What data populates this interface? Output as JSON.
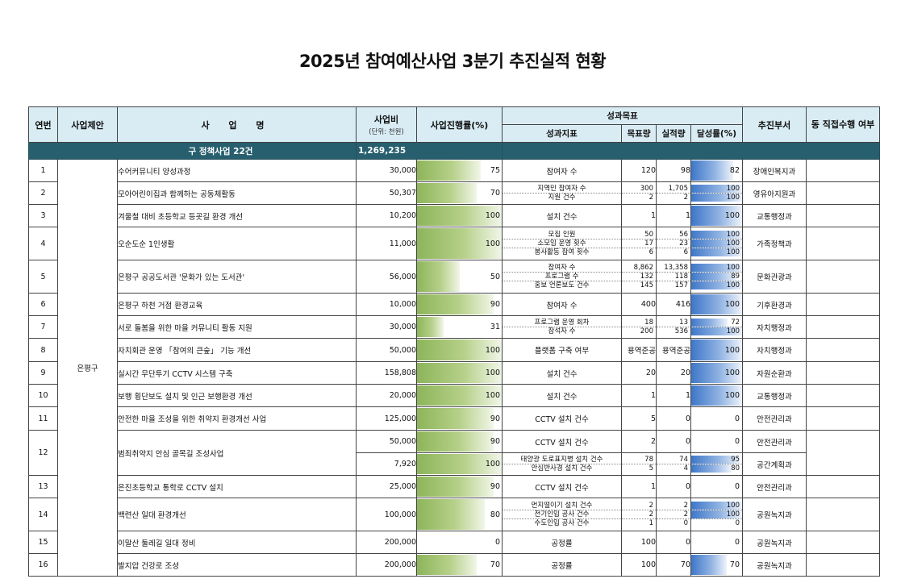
{
  "title": "2025년 참여예산사업 3분기 추진실적 현황",
  "headers": {
    "no": "연번",
    "proposer": "사업제안",
    "name": "사 업 명",
    "budget": "사업비",
    "budget_unit": "(단위: 천원)",
    "progress": "사업진행률(%)",
    "goal": "성과목표",
    "indicator": "성과지표",
    "target": "목표량",
    "actual": "실적량",
    "achieve": "달성률(%)",
    "dept": "추진부서",
    "direct": "동 직접수행 여부"
  },
  "summary": {
    "label": "구 정책사업 22건",
    "amount": "1,269,235"
  },
  "proposer_name": "은평구",
  "colors": {
    "header_bg": "#d9ecf4",
    "summary_bg": "#275f6e",
    "progress_bar": "#8db55a",
    "achieve_bar": "#3e77c8"
  },
  "rows": [
    {
      "no": "1",
      "name": "수어커뮤니티 양성과정",
      "budget": "30,000",
      "progress": 75,
      "indicators": [
        {
          "label": "참여자 수",
          "target": "120",
          "actual": "98",
          "rate": 82
        }
      ],
      "dept": "장애인복지과"
    },
    {
      "no": "2",
      "name": "모아어린이집과 함께하는 공동체활동",
      "budget": "50,307",
      "progress": 70,
      "indicators": [
        {
          "label": "지역민 참여자 수",
          "target": "300",
          "actual": "1,705",
          "rate": 100
        },
        {
          "label": "지원 건수",
          "target": "2",
          "actual": "2",
          "rate": 100
        }
      ],
      "dept": "영유아지원과"
    },
    {
      "no": "3",
      "name": "겨울철 대비 초등학교 등굣길 환경 개선",
      "budget": "10,200",
      "progress": 100,
      "indicators": [
        {
          "label": "설치 건수",
          "target": "1",
          "actual": "1",
          "rate": 100
        }
      ],
      "dept": "교통행정과"
    },
    {
      "no": "4",
      "name": "오순도순 1인생활",
      "budget": "11,000",
      "progress": 100,
      "indicators": [
        {
          "label": "모집 인원",
          "target": "50",
          "actual": "56",
          "rate": 100
        },
        {
          "label": "소모임 운영 횟수",
          "target": "17",
          "actual": "23",
          "rate": 100
        },
        {
          "label": "봉사활동 참여 횟수",
          "target": "6",
          "actual": "6",
          "rate": 100
        }
      ],
      "dept": "가족정책과"
    },
    {
      "no": "5",
      "name": "은평구 공공도서관 '문화가 있는 도서관'",
      "budget": "56,000",
      "progress": 50,
      "indicators": [
        {
          "label": "참여자 수",
          "target": "8,862",
          "actual": "13,358",
          "rate": 100
        },
        {
          "label": "프로그램 수",
          "target": "132",
          "actual": "118",
          "rate": 89
        },
        {
          "label": "홍보 언론보도 건수",
          "target": "145",
          "actual": "157",
          "rate": 100
        }
      ],
      "dept": "문화관광과"
    },
    {
      "no": "6",
      "name": "은평구 하천 거점 환경교육",
      "budget": "10,000",
      "progress": 90,
      "indicators": [
        {
          "label": "참여자 수",
          "target": "400",
          "actual": "416",
          "rate": 100
        }
      ],
      "dept": "기후환경과"
    },
    {
      "no": "7",
      "name": "서로 돌봄을 위한 마을 커뮤니티 활동 지원",
      "budget": "30,000",
      "progress": 31,
      "indicators": [
        {
          "label": "프로그램 운영 회차",
          "target": "18",
          "actual": "13",
          "rate": 72
        },
        {
          "label": "참석자 수",
          "target": "200",
          "actual": "536",
          "rate": 100
        }
      ],
      "dept": "자치행정과"
    },
    {
      "no": "8",
      "name": "자치회관 운영 「참여의 큰숲」 기능 개선",
      "budget": "50,000",
      "progress": 100,
      "indicators": [
        {
          "label": "플랫폼 구축 여부",
          "target": "용역준공",
          "actual": "용역준공",
          "rate": 100
        }
      ],
      "dept": "자치행정과"
    },
    {
      "no": "9",
      "name": "실시간 무단투기 CCTV 시스템 구축",
      "budget": "158,808",
      "progress": 100,
      "indicators": [
        {
          "label": "설치 건수",
          "target": "20",
          "actual": "20",
          "rate": 100
        }
      ],
      "dept": "자원순환과"
    },
    {
      "no": "10",
      "name": "보행 횡단보도 설치 및 인근 보행환경 개선",
      "budget": "20,000",
      "progress": 100,
      "indicators": [
        {
          "label": "설치 건수",
          "target": "1",
          "actual": "1",
          "rate": 100
        }
      ],
      "dept": "교통행정과"
    },
    {
      "no": "11",
      "name": "안전한 마을 조성을 위한 취약지 환경개선 사업",
      "budget": "125,000",
      "progress": 90,
      "indicators": [
        {
          "label": "CCTV 설치 건수",
          "target": "5",
          "actual": "0",
          "rate": 0
        }
      ],
      "dept": "안전관리과"
    },
    {
      "no": "12",
      "name": "범죄취약지 안심 골목길 조성사업",
      "budget": "50,000",
      "progress": 90,
      "indicators": [
        {
          "label": "CCTV 설치 건수",
          "target": "2",
          "actual": "0",
          "rate": 0
        }
      ],
      "dept": "안전관리과",
      "sub": {
        "budget": "7,920",
        "progress": 100,
        "indicators": [
          {
            "label": "태양광 도로표지병 설치 건수",
            "target": "78",
            "actual": "74",
            "rate": 95
          },
          {
            "label": "안심반사경 설치 건수",
            "target": "5",
            "actual": "4",
            "rate": 80
          }
        ],
        "dept": "공간계획과"
      }
    },
    {
      "no": "13",
      "name": "은진초등학교 통학로 CCTV 설치",
      "budget": "25,000",
      "progress": 90,
      "indicators": [
        {
          "label": "CCTV 설치 건수",
          "target": "1",
          "actual": "0",
          "rate": 0
        }
      ],
      "dept": "안전관리과"
    },
    {
      "no": "14",
      "name": "백련산 일대 환경개선",
      "budget": "100,000",
      "progress": 80,
      "indicators": [
        {
          "label": "먼지떨이기 설치 건수",
          "target": "2",
          "actual": "2",
          "rate": 100
        },
        {
          "label": "전기인입 공사 건수",
          "target": "2",
          "actual": "2",
          "rate": 100
        },
        {
          "label": "수도인입 공사 건수",
          "target": "1",
          "actual": "0",
          "rate": 0
        }
      ],
      "dept": "공원녹지과"
    },
    {
      "no": "15",
      "name": "이말산 둘레길 일대 정비",
      "budget": "200,000",
      "progress": 0,
      "indicators": [
        {
          "label": "공정률",
          "target": "100",
          "actual": "0",
          "rate": 0
        }
      ],
      "dept": "공원녹지과"
    },
    {
      "no": "16",
      "name": "발지압 건강로 조성",
      "budget": "200,000",
      "progress": 70,
      "indicators": [
        {
          "label": "공정률",
          "target": "100",
          "actual": "70",
          "rate": 70
        }
      ],
      "dept": "공원녹지과"
    }
  ]
}
